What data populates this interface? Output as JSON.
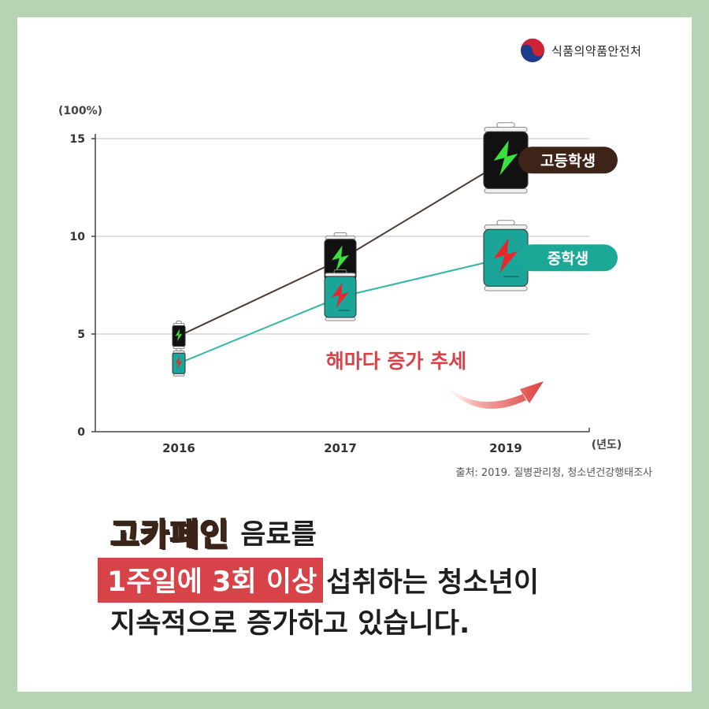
{
  "agency": {
    "name": "식품의약품안전처",
    "logo_icon": "taegeuk-icon"
  },
  "chart_data": {
    "type": "line",
    "x": [
      "2016",
      "2017",
      "2019"
    ],
    "y_unit_label": "(100%)",
    "x_unit_label": "(년도)",
    "yticks": [
      0,
      5,
      10,
      15
    ],
    "ylim": [
      0,
      15
    ],
    "grid": true,
    "series": [
      {
        "name": "고등학생",
        "values": [
          4.9,
          8.8,
          13.9
        ],
        "color": "#4a3a33",
        "badge_color": "#3e2418",
        "can_color": "#111111",
        "bolt_color": "#38e23a"
      },
      {
        "name": "중학생",
        "values": [
          3.5,
          6.9,
          8.9
        ],
        "color": "#33b6a6",
        "badge_color": "#1ca896",
        "can_color": "#1aa598",
        "bolt_color": "#e8262c"
      }
    ],
    "annotation": "해마다 증가 추세",
    "annotation_color": "#d8434a",
    "source": "출처: 2019. 질병관리청, 청소년건강행태조사"
  },
  "caption": {
    "line1_highlight": "고카페인",
    "line1_rest": "음료를",
    "line2_highlight": "1주일에 3회 이상",
    "line2_rest": "섭취하는 청소년이",
    "line3": "지속적으로 증가하고 있습니다."
  }
}
